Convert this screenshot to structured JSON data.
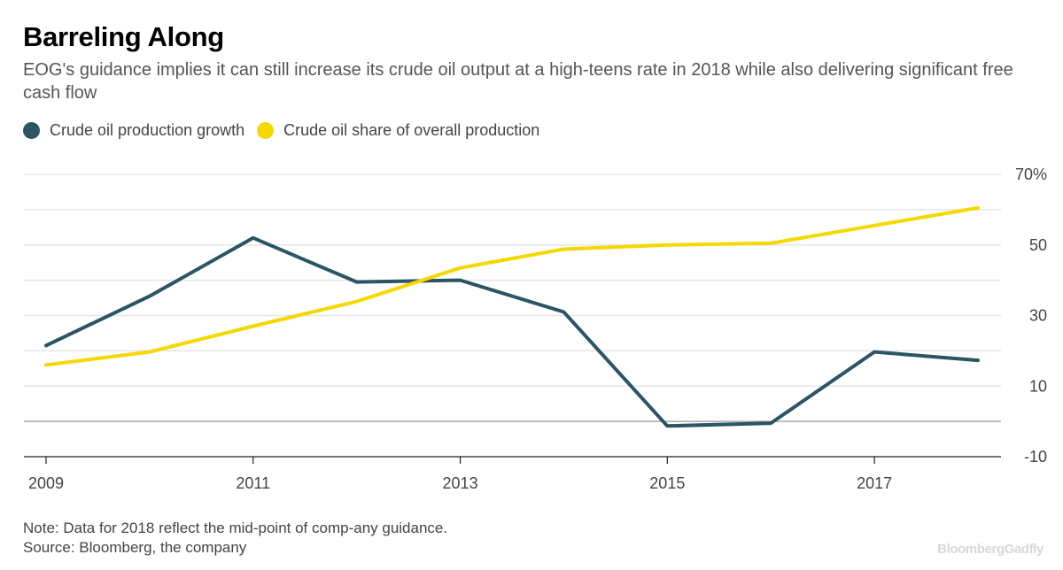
{
  "title": "Barreling Along",
  "subtitle": "EOG's guidance implies it can still increase its crude oil output at a high-teens rate in 2018 while also delivering significant free cash flow",
  "legend": {
    "items": [
      {
        "label": "Crude oil production growth",
        "color": "#2b5465"
      },
      {
        "label": "Crude oil share of overall production",
        "color": "#f5d800"
      }
    ]
  },
  "footer": {
    "note": "Note: Data for 2018 reflect the mid-point of comp-any guidance.",
    "source": "Source: Bloomberg, the company",
    "brand_part1": "Bloomberg",
    "brand_part2": "Gadfly"
  },
  "chart_data": {
    "type": "line",
    "title": "Barreling Along",
    "x": [
      2009,
      2010,
      2011,
      2012,
      2013,
      2014,
      2015,
      2016,
      2017,
      2018
    ],
    "x_tick_labels": [
      "2009",
      "2011",
      "2013",
      "2015",
      "2017"
    ],
    "y_tick_labels": [
      "70%",
      "50",
      "30",
      "10",
      "-10"
    ],
    "ylim": [
      -10,
      70
    ],
    "xlim": [
      2009,
      2018
    ],
    "grid": true,
    "legend_position": "top-left",
    "series": [
      {
        "name": "Crude oil production growth",
        "color": "#2b5465",
        "values": [
          21.5,
          35.5,
          52,
          39.5,
          40,
          31,
          -1.3,
          -0.5,
          19.7,
          17.3
        ]
      },
      {
        "name": "Crude oil share of overall production",
        "color": "#f5d800",
        "values": [
          16,
          19.7,
          27,
          34,
          43.5,
          48.8,
          50,
          50.5,
          55.5,
          60.5
        ]
      }
    ]
  }
}
